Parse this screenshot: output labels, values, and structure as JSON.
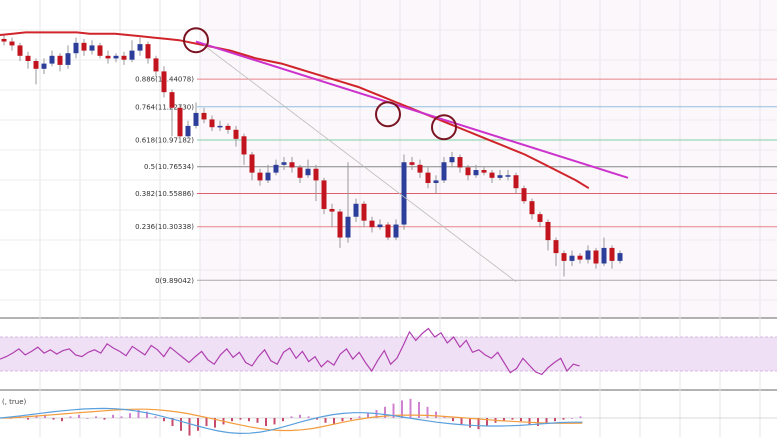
{
  "colors": {
    "up_candle": "#2c3e99",
    "down_candle": "#c2141e",
    "ma_curve": "#d0242a",
    "trendline": "#cc33cc",
    "rsi_line": "#b040b0",
    "rsi_band": "#f0e0f5",
    "macd_signal": "#f39c3c",
    "macd_line": "#5aa0dc",
    "hist_pos": "#d080d0",
    "hist_neg": "#c84a6a"
  },
  "chart_data": {
    "type": "candlestick",
    "title": "",
    "xlabel": "",
    "ylabel": "",
    "ylim": [
      9.6,
      12.05
    ],
    "grid": true,
    "fibonacci_levels": [
      {
        "label": "0.886(11.44078)",
        "ratio": 0.886,
        "price": 11.44078,
        "color": "#e8838c"
      },
      {
        "label": "0.764(11.22730)",
        "ratio": 0.764,
        "price": 11.2273,
        "color": "#8fc0e0"
      },
      {
        "label": "0.618(10.97182)",
        "ratio": 0.618,
        "price": 10.97182,
        "color": "#7fd0a8"
      },
      {
        "label": "0.5(10.76534)",
        "ratio": 0.5,
        "price": 10.76534,
        "color": "#888888"
      },
      {
        "label": "0.382(10.55886)",
        "ratio": 0.382,
        "price": 10.55886,
        "color": "#e06070"
      },
      {
        "label": "0.236(10.30338)",
        "ratio": 0.236,
        "price": 10.30338,
        "color": "#e8838c"
      },
      {
        "label": "0(9.89042)",
        "ratio": 0,
        "price": 9.89042,
        "color": "#aaaaaa"
      }
    ],
    "candles": [
      [
        11.75,
        11.73,
        11.78,
        11.7
      ],
      [
        11.73,
        11.7,
        11.76,
        11.66
      ],
      [
        11.7,
        11.62,
        11.72,
        11.58
      ],
      [
        11.62,
        11.58,
        11.65,
        11.52
      ],
      [
        11.58,
        11.52,
        11.6,
        11.4
      ],
      [
        11.52,
        11.56,
        11.6,
        11.48
      ],
      [
        11.56,
        11.62,
        11.66,
        11.54
      ],
      [
        11.62,
        11.55,
        11.64,
        11.5
      ],
      [
        11.55,
        11.64,
        11.7,
        11.52
      ],
      [
        11.64,
        11.72,
        11.76,
        11.6
      ],
      [
        11.72,
        11.66,
        11.75,
        11.62
      ],
      [
        11.66,
        11.7,
        11.74,
        11.63
      ],
      [
        11.7,
        11.62,
        11.72,
        11.6
      ],
      [
        11.62,
        11.6,
        11.66,
        11.56
      ],
      [
        11.6,
        11.62,
        11.64,
        11.57
      ],
      [
        11.62,
        11.59,
        11.65,
        11.55
      ],
      [
        11.59,
        11.66,
        11.74,
        11.57
      ],
      [
        11.66,
        11.71,
        11.76,
        11.62
      ],
      [
        11.71,
        11.6,
        11.73,
        11.56
      ],
      [
        11.6,
        11.5,
        11.62,
        11.46
      ],
      [
        11.5,
        11.34,
        11.54,
        11.3
      ],
      [
        11.34,
        11.22,
        11.36,
        11.0
      ],
      [
        11.22,
        11.0,
        11.25,
        10.96
      ],
      [
        11.0,
        11.08,
        11.12,
        10.98
      ],
      [
        11.08,
        11.18,
        11.26,
        11.06
      ],
      [
        11.18,
        11.13,
        11.22,
        11.1
      ],
      [
        11.13,
        11.07,
        11.16,
        11.04
      ],
      [
        11.07,
        11.08,
        11.12,
        11.04
      ],
      [
        11.08,
        11.05,
        11.1,
        11.02
      ],
      [
        11.05,
        10.98,
        11.08,
        10.92
      ],
      [
        11.0,
        10.86,
        11.02,
        10.78
      ],
      [
        10.86,
        10.72,
        10.88,
        10.66
      ],
      [
        10.72,
        10.66,
        10.75,
        10.62
      ],
      [
        10.66,
        10.72,
        10.78,
        10.64
      ],
      [
        10.72,
        10.78,
        10.82,
        10.7
      ],
      [
        10.78,
        10.8,
        10.84,
        10.74
      ],
      [
        10.8,
        10.76,
        10.84,
        10.72
      ],
      [
        10.76,
        10.68,
        10.78,
        10.64
      ],
      [
        10.7,
        10.75,
        10.82,
        10.68
      ],
      [
        10.75,
        10.66,
        10.78,
        10.5
      ],
      [
        10.66,
        10.44,
        10.68,
        10.4
      ],
      [
        10.44,
        10.42,
        10.48,
        10.3
      ],
      [
        10.42,
        10.22,
        10.44,
        10.14
      ],
      [
        10.22,
        10.38,
        10.8,
        10.18
      ],
      [
        10.38,
        10.48,
        10.52,
        10.34
      ],
      [
        10.48,
        10.35,
        10.5,
        10.3
      ],
      [
        10.35,
        10.3,
        10.38,
        10.26
      ],
      [
        10.3,
        10.32,
        10.36,
        10.28
      ],
      [
        10.32,
        10.22,
        10.34,
        10.2
      ],
      [
        10.22,
        10.32,
        10.36,
        10.2
      ],
      [
        10.32,
        10.8,
        10.86,
        10.28
      ],
      [
        10.8,
        10.78,
        10.84,
        10.74
      ],
      [
        10.78,
        10.72,
        10.82,
        10.68
      ],
      [
        10.72,
        10.64,
        10.76,
        10.6
      ],
      [
        10.64,
        10.66,
        10.7,
        10.56
      ],
      [
        10.66,
        10.8,
        10.84,
        10.64
      ],
      [
        10.8,
        10.84,
        10.88,
        10.76
      ],
      [
        10.84,
        10.76,
        10.86,
        10.72
      ],
      [
        10.76,
        10.7,
        10.78,
        10.66
      ],
      [
        10.7,
        10.74,
        10.78,
        10.68
      ],
      [
        10.74,
        10.72,
        10.76,
        10.7
      ],
      [
        10.72,
        10.68,
        10.74,
        10.64
      ],
      [
        10.68,
        10.7,
        10.74,
        10.66
      ],
      [
        10.7,
        10.7,
        10.74,
        10.66
      ],
      [
        10.7,
        10.6,
        10.72,
        10.56
      ],
      [
        10.6,
        10.5,
        10.62,
        10.48
      ],
      [
        10.5,
        10.4,
        10.52,
        10.36
      ],
      [
        10.4,
        10.34,
        10.42,
        10.3
      ],
      [
        10.34,
        10.2,
        10.36,
        10.12
      ],
      [
        10.2,
        10.1,
        10.22,
        10.0
      ],
      [
        10.1,
        10.04,
        10.12,
        9.92
      ],
      [
        10.04,
        10.08,
        10.12,
        10.0
      ],
      [
        10.08,
        10.05,
        10.1,
        10.02
      ],
      [
        10.05,
        10.12,
        10.16,
        10.02
      ],
      [
        10.12,
        10.02,
        10.14,
        9.98
      ],
      [
        10.02,
        10.14,
        10.22,
        10.0
      ],
      [
        10.14,
        10.04,
        10.16,
        9.98
      ],
      [
        10.04,
        10.1,
        10.12,
        10.02
      ]
    ],
    "moving_average": [
      11.78,
      11.79,
      11.8,
      11.8,
      11.8,
      11.8,
      11.8,
      11.79,
      11.79,
      11.79,
      11.78,
      11.77,
      11.76,
      11.75,
      11.74,
      11.72,
      11.7,
      11.68,
      11.66,
      11.63,
      11.6,
      11.58,
      11.56,
      11.53,
      11.5,
      11.47,
      11.44,
      11.41,
      11.38,
      11.34,
      11.3,
      11.26,
      11.22,
      11.18,
      11.14,
      11.1,
      11.06,
      11.02,
      10.98,
      10.94,
      10.9,
      10.86,
      10.81,
      10.76,
      10.71,
      10.66,
      10.6
    ],
    "trendline": {
      "x": [
        24,
        78
      ],
      "y": [
        11.73,
        10.68
      ]
    },
    "rsi": [
      44,
      47,
      51,
      56,
      49,
      53,
      58,
      51,
      55,
      50,
      54,
      56,
      49,
      47,
      52,
      55,
      51,
      62,
      57,
      53,
      48,
      59,
      54,
      49,
      60,
      55,
      47,
      58,
      52,
      46,
      40,
      47,
      53,
      43,
      38,
      49,
      56,
      46,
      52,
      40,
      36,
      47,
      55,
      42,
      38,
      52,
      57,
      45,
      53,
      41,
      47,
      35,
      42,
      37,
      50,
      56,
      44,
      52,
      40,
      30,
      43,
      54,
      38,
      45,
      60,
      76,
      66,
      74,
      80,
      70,
      75,
      63,
      70,
      58,
      66,
      52,
      55,
      49,
      45,
      52,
      40,
      28,
      33,
      45,
      37,
      29,
      26,
      34,
      40,
      45,
      30,
      38,
      36
    ],
    "macd_hist": [
      0,
      1,
      -1,
      1,
      2,
      -1,
      -2,
      1,
      2,
      0,
      1,
      -1,
      2,
      1,
      3,
      5,
      4,
      1,
      -2,
      -5,
      -8,
      -11,
      -8,
      -5,
      -6,
      -4,
      -2,
      -1,
      -2,
      -3,
      -5,
      -4,
      -2,
      1,
      2,
      1,
      -1,
      -3,
      -4,
      -2,
      -1,
      1,
      3,
      5,
      7,
      9,
      11,
      12,
      10,
      7,
      4,
      1,
      -2,
      -4,
      -6,
      -7,
      -5,
      -3,
      -2,
      -1,
      -2,
      -4,
      -5,
      -3,
      -2,
      -1,
      0,
      1
    ],
    "macd_signal": [
      0,
      0,
      0.5,
      1,
      1.5,
      2,
      2.5,
      3,
      3.5,
      4,
      4.5,
      5,
      5.3,
      5.5,
      5.5,
      5.2,
      4.6,
      3.8,
      2.8,
      1.5,
      0.1,
      -1.3,
      -2.8,
      -4.2,
      -5.5,
      -6.6,
      -7.4,
      -7.8,
      -7.8,
      -7.4,
      -6.6,
      -5.4,
      -4,
      -2.6,
      -1.4,
      -0.3,
      0.6,
      1.2,
      1.6,
      1.8,
      1.8,
      1.6,
      1.3,
      0.9,
      0.4,
      -0.1,
      -0.6,
      -1.1,
      -1.6,
      -2,
      -2.4,
      -2.7,
      -3,
      -3.2,
      -3.3,
      -3.3,
      -3.2
    ],
    "macd_line": [
      0,
      0.6,
      1.4,
      2.2,
      3,
      3.8,
      4.5,
      5.1,
      5.6,
      5.9,
      6,
      5.8,
      5.3,
      4.5,
      3.4,
      2,
      0.4,
      -1.4,
      -3.2,
      -5,
      -6.7,
      -8.1,
      -9.1,
      -9.6,
      -9.5,
      -8.8,
      -7.6,
      -6,
      -4.2,
      -2.3,
      -0.6,
      0.9,
      2.1,
      2.9,
      3.3,
      3.3,
      2.9,
      2.2,
      1.3,
      0.3,
      -0.7,
      -1.7,
      -2.6,
      -3.4,
      -4,
      -4.5,
      -4.8,
      -5,
      -5,
      -4.9,
      -4.6,
      -4.2,
      -3.7,
      -3.2,
      -2.8,
      -2.6,
      -2.6
    ],
    "indicator_label": "(, true)",
    "circles": [
      {
        "index": 24,
        "price": 11.74
      },
      {
        "index": 48,
        "price": 11.17
      },
      {
        "index": 55,
        "price": 11.07
      }
    ]
  }
}
